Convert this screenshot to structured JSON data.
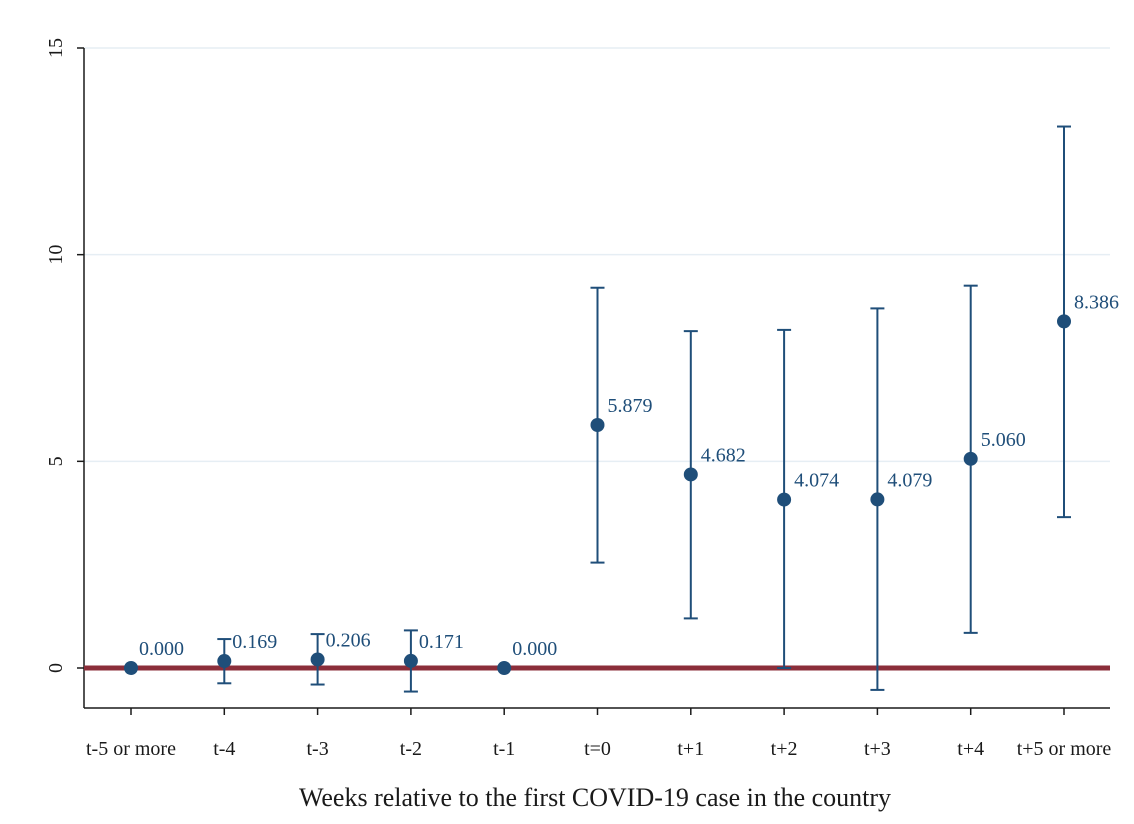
{
  "chart_data": {
    "type": "scatter",
    "title": "",
    "xlabel": "Weeks relative to the first COVID-19 case in the country",
    "ylabel": "",
    "categories": [
      "t-5 or more",
      "t-4",
      "t-3",
      "t-2",
      "t-1",
      "t=0",
      "t+1",
      "t+2",
      "t+3",
      "t+4",
      "t+5 or more"
    ],
    "estimates": [
      0.0,
      0.169,
      0.206,
      0.171,
      0.0,
      5.879,
      4.682,
      4.074,
      4.079,
      5.06,
      8.386
    ],
    "ci_lower": [
      null,
      -0.37,
      -0.4,
      -0.57,
      null,
      2.55,
      1.2,
      0.0,
      -0.53,
      0.85,
      3.65
    ],
    "ci_upper": [
      null,
      0.7,
      0.82,
      0.91,
      null,
      9.2,
      8.15,
      8.18,
      8.7,
      9.25,
      13.1
    ],
    "data_labels": [
      "0.000",
      "0.169",
      "0.206",
      "0.171",
      "0.000",
      "5.879",
      "4.682",
      "4.074",
      "4.079",
      "5.060",
      "8.386"
    ],
    "y_ticks": [
      "0",
      "5",
      "10",
      "15"
    ],
    "ylim": [
      -1,
      15.2
    ],
    "reference_line": 0,
    "grid": true,
    "legend": "none",
    "colors": {
      "marker": "#1f4e79",
      "reference_line": "#8b2e3a",
      "grid": "#e6eef4",
      "axis": "#1a1a1a"
    }
  }
}
